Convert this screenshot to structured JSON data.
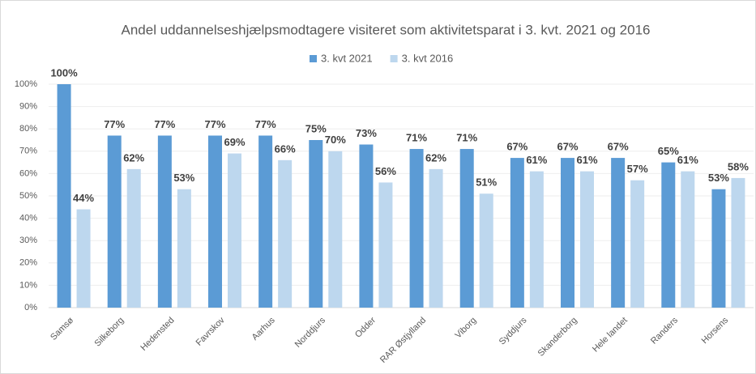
{
  "chart_data": {
    "type": "bar",
    "title": "Andel uddannelseshjælpsmodtagere  visiteret som aktivitetsparat i 3. kvt. 2021 og 2016",
    "categories": [
      "Samsø",
      "Silkeborg",
      "Hedensted",
      "Favrskov",
      "Aarhus",
      "Norddjurs",
      "Odder",
      "RAR Østjylland",
      "Viborg",
      "Syddjurs",
      "Skanderborg",
      "Hele landet",
      "Randers",
      "Horsens"
    ],
    "series": [
      {
        "name": "3. kvt 2021",
        "color": "#5b9bd5",
        "values": [
          100,
          77,
          77,
          77,
          77,
          75,
          73,
          71,
          71,
          67,
          67,
          67,
          65,
          53
        ],
        "value_labels": [
          "100%",
          "77%",
          "77%",
          "77%",
          "77%",
          "75%",
          "73%",
          "71%",
          "71%",
          "67%",
          "67%",
          "67%",
          "65%",
          "53%"
        ]
      },
      {
        "name": "3. kvt 2016",
        "color": "#bdd7ee",
        "values": [
          44,
          62,
          53,
          69,
          66,
          70,
          56,
          62,
          51,
          61,
          61,
          57,
          61,
          58
        ],
        "value_labels": [
          "44%",
          "62%",
          "53%",
          "69%",
          "66%",
          "70%",
          "56%",
          "62%",
          "51%",
          "61%",
          "61%",
          "57%",
          "61%",
          "58%"
        ]
      }
    ],
    "ylim": [
      0,
      100
    ],
    "yticks": [
      {
        "value": 0,
        "label": "0%"
      },
      {
        "value": 10,
        "label": "10%"
      },
      {
        "value": 20,
        "label": "20%"
      },
      {
        "value": 30,
        "label": "30%"
      },
      {
        "value": 40,
        "label": "40%"
      },
      {
        "value": 50,
        "label": "50%"
      },
      {
        "value": 60,
        "label": "60%"
      },
      {
        "value": 70,
        "label": "70%"
      },
      {
        "value": 80,
        "label": "80%"
      },
      {
        "value": 90,
        "label": "90%"
      },
      {
        "value": 100,
        "label": "100%"
      }
    ],
    "legend": "top"
  }
}
